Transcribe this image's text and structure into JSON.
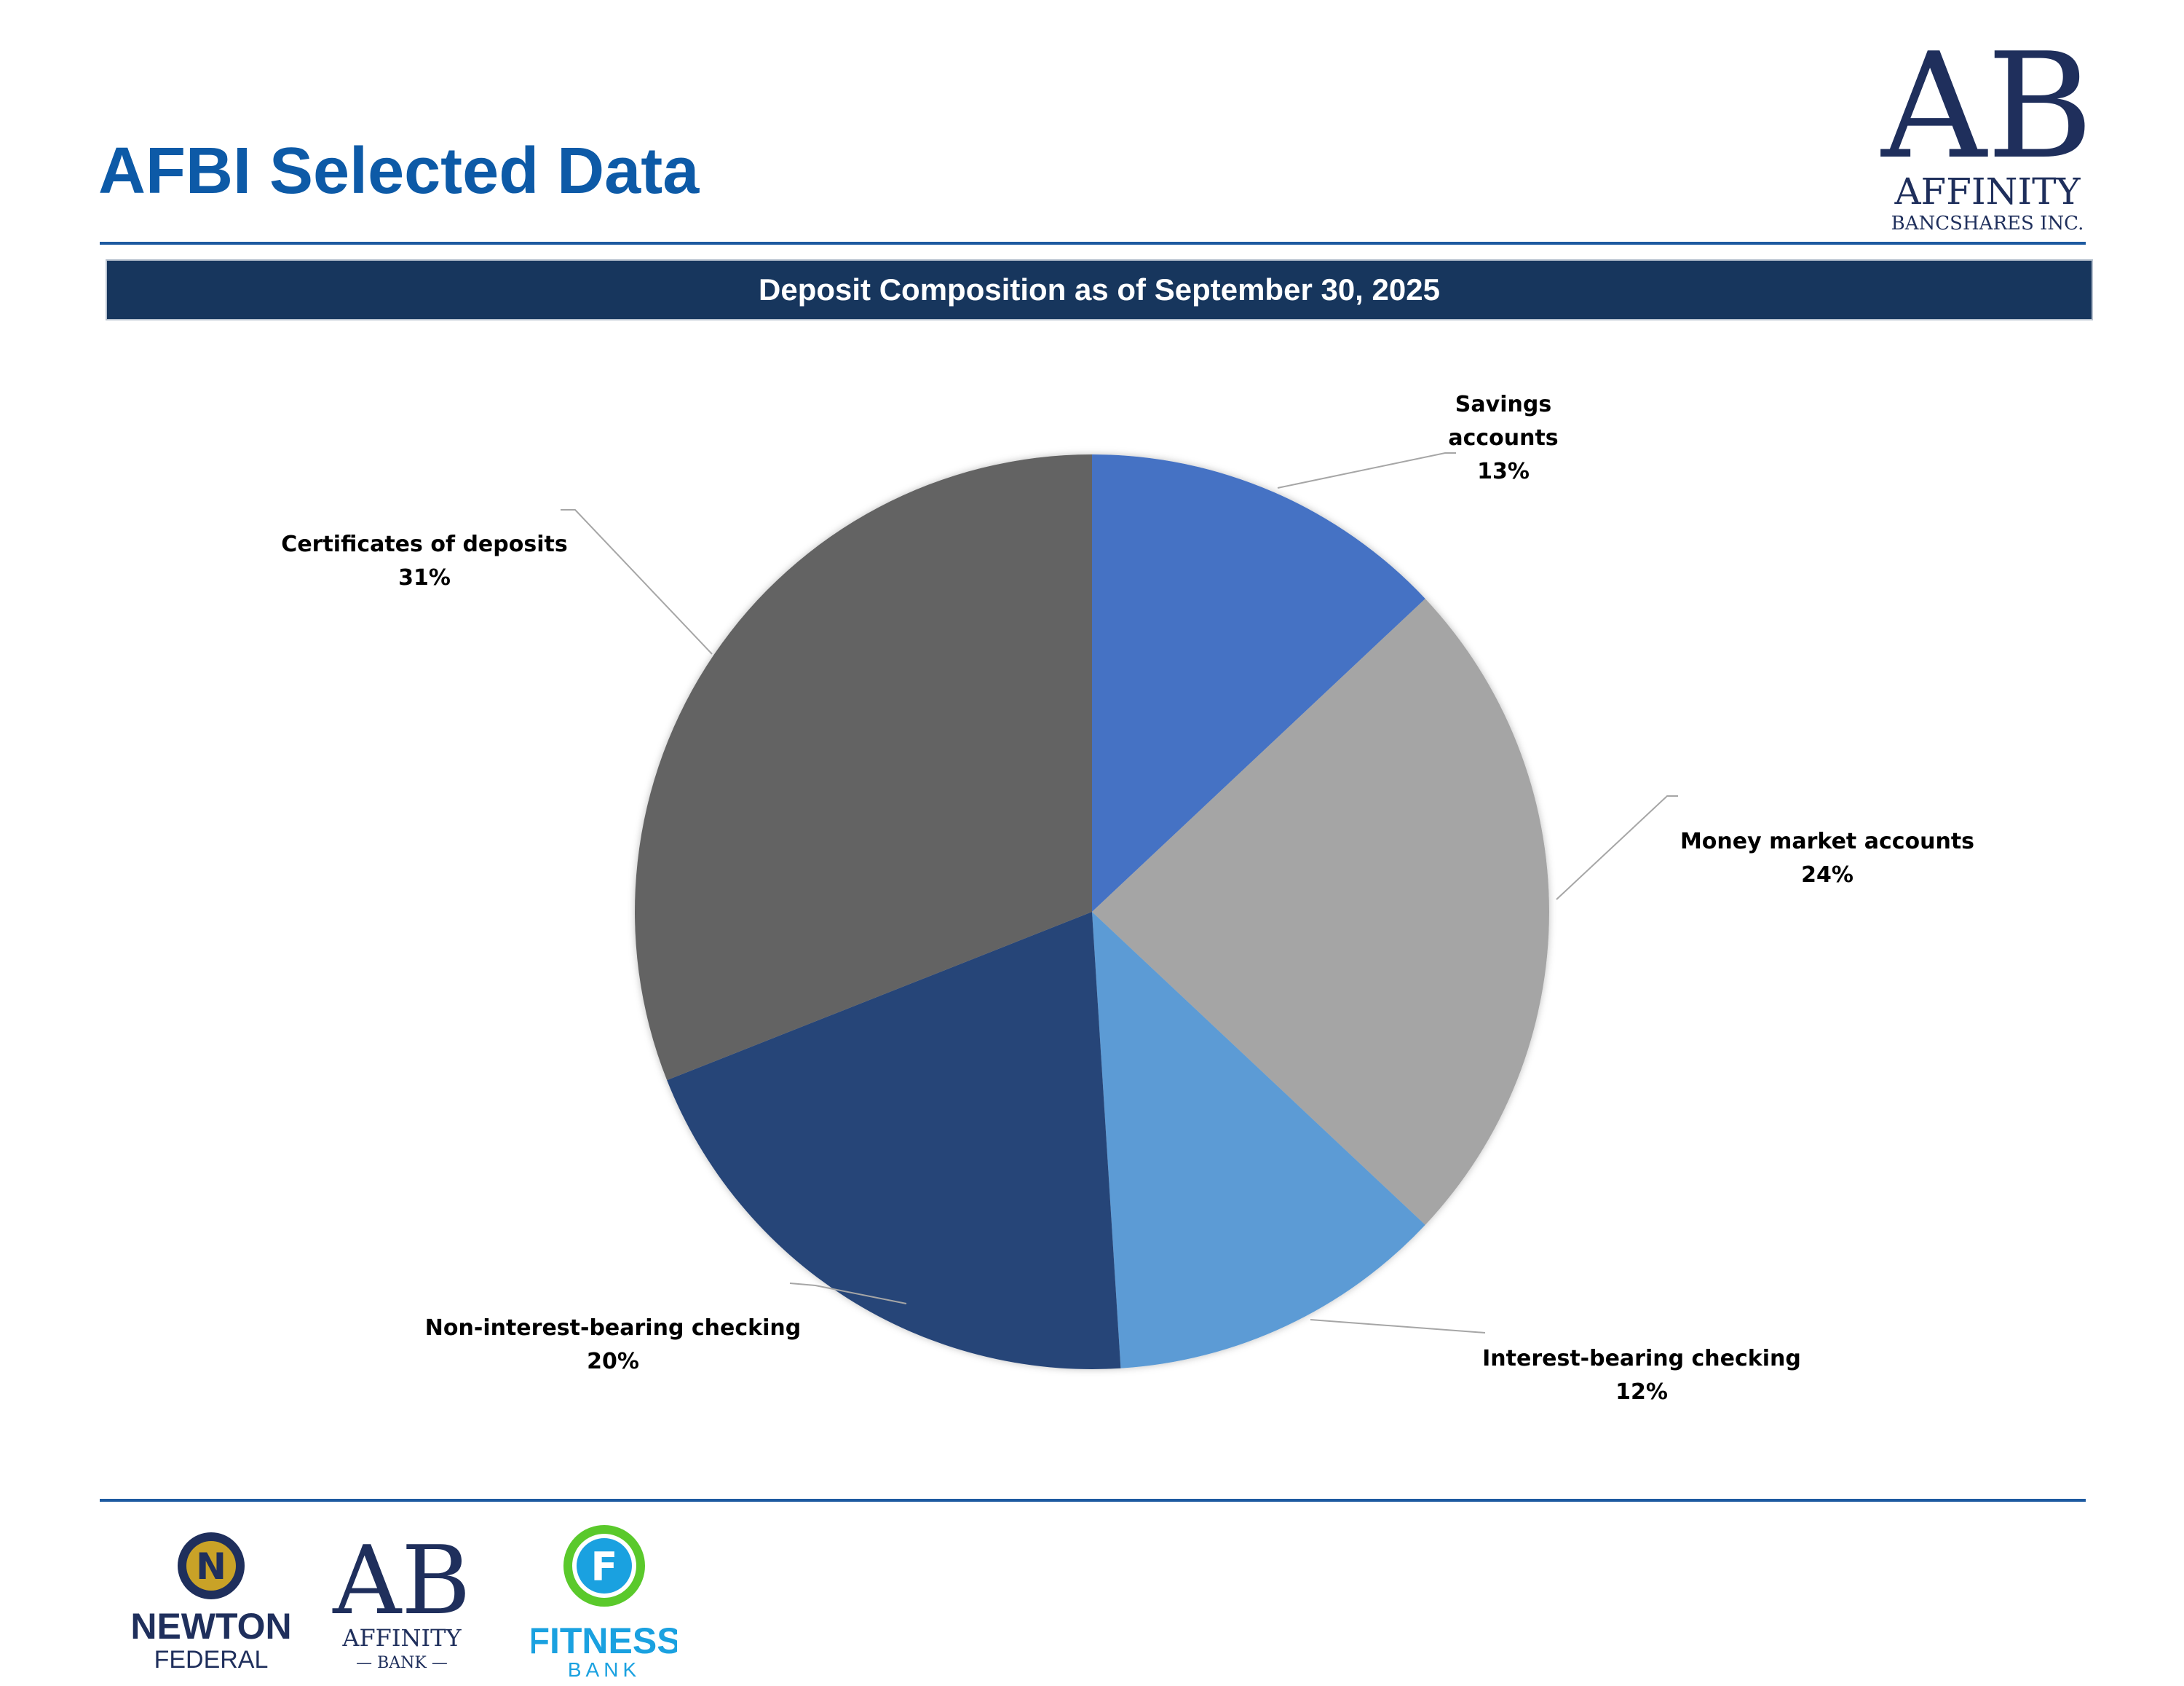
{
  "page": {
    "title": "AFBI Selected Data",
    "banner": "Deposit Composition as of September 30, 2025"
  },
  "logos": {
    "main": {
      "line1": "AFFINITY",
      "line2": "BANCSHARES INC.",
      "mark": "AB"
    },
    "newton": {
      "line1": "NEWTON",
      "line2": "FEDERAL",
      "mark": "N"
    },
    "affinity_bank": {
      "line1": "AFFINITY",
      "line2": "— BANK —",
      "mark": "AB"
    },
    "fitness": {
      "line1": "FITNESS",
      "line2": "BANK",
      "mark": "F"
    }
  },
  "colors": {
    "title": "#0d5aa7",
    "rule": "#1d5aa0",
    "banner_bg": "#17365d",
    "navy": "#1f2f5c",
    "leader": "#a6a6a6"
  },
  "chart_data": {
    "type": "pie",
    "title": "Deposit Composition as of September 30, 2025",
    "start_angle_deg": 0,
    "direction": "clockwise",
    "slices": [
      {
        "label": "Savings accounts",
        "label_lines": [
          "Savings",
          "accounts"
        ],
        "value": 13,
        "value_label": "13%",
        "color": "#4472c4"
      },
      {
        "label": "Money market accounts",
        "label_lines": [
          "Money market accounts"
        ],
        "value": 24,
        "value_label": "24%",
        "color": "#a5a5a5"
      },
      {
        "label": "Interest-bearing checking",
        "label_lines": [
          "Interest-bearing checking"
        ],
        "value": 12,
        "value_label": "12%",
        "color": "#5b9bd5"
      },
      {
        "label": "Non-interest-bearing checking",
        "label_lines": [
          "Non-interest-bearing checking"
        ],
        "value": 20,
        "value_label": "20%",
        "color": "#264478"
      },
      {
        "label": "Certificates of deposits",
        "label_lines": [
          "Certificates of deposits"
        ],
        "value": 31,
        "value_label": "31%",
        "color": "#636363"
      }
    ]
  }
}
